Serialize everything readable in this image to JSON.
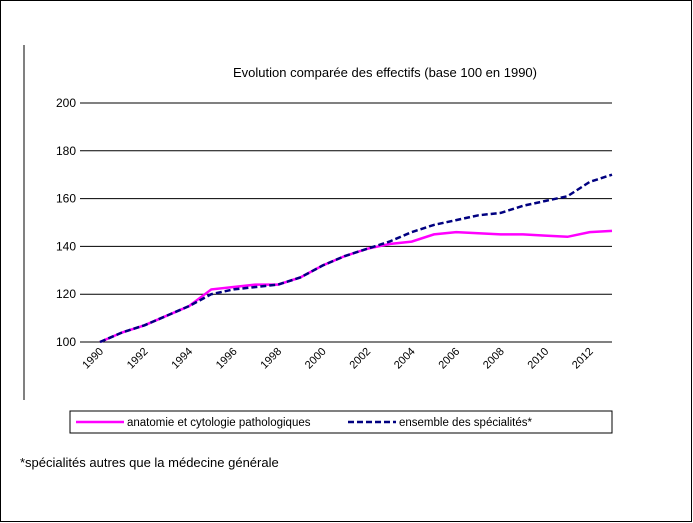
{
  "chart_data": {
    "type": "line",
    "title": "Evolution comparée des effectifs (base 100 en 1990)",
    "x": [
      1990,
      1991,
      1992,
      1993,
      1994,
      1995,
      1996,
      1997,
      1998,
      1999,
      2000,
      2001,
      2002,
      2003,
      2004,
      2005,
      2006,
      2007,
      2008,
      2009,
      2010,
      2011,
      2012,
      2013
    ],
    "series": [
      {
        "name": "anatomie et cytologie pathologiques",
        "color": "#ff00ff",
        "dash": false,
        "values": [
          100,
          104,
          107,
          111,
          115,
          122,
          123,
          124,
          124,
          127,
          132,
          136,
          139,
          141,
          142,
          145,
          146,
          145.5,
          145,
          145,
          144.5,
          144,
          146,
          146.5
        ]
      },
      {
        "name": "ensemble des spécialités*",
        "color": "#000080",
        "dash": true,
        "values": [
          100,
          104,
          107,
          111,
          115,
          120,
          122,
          123,
          124,
          127,
          132,
          136,
          139,
          142,
          146,
          149,
          151,
          153,
          154,
          157,
          159,
          161,
          167,
          170
        ]
      }
    ],
    "xlim": [
      1990,
      2013
    ],
    "xticks": [
      1990,
      1992,
      1994,
      1996,
      1998,
      2000,
      2002,
      2004,
      2006,
      2008,
      2010,
      2012
    ],
    "ylim": [
      100,
      200
    ],
    "yticks": [
      100,
      120,
      140,
      160,
      180,
      200
    ],
    "grid": true,
    "footnote": "*spécialités autres que la médecine générale"
  }
}
